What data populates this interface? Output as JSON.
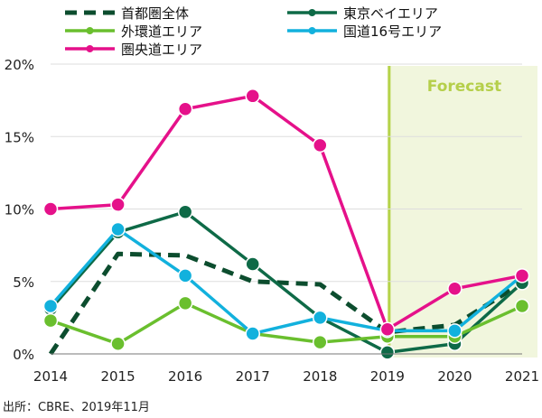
{
  "chart_data": {
    "type": "line",
    "title": "",
    "xlabel": "",
    "ylabel": "",
    "categories": [
      "2014",
      "2015",
      "2016",
      "2017",
      "2018",
      "2019",
      "2020",
      "2021"
    ],
    "ylim": [
      0,
      20
    ],
    "yticks": [
      0,
      5,
      10,
      15,
      20
    ],
    "ytick_labels": [
      "0%",
      "5%",
      "10%",
      "15%",
      "20%"
    ],
    "grid": true,
    "legend_position": "top",
    "forecast": {
      "label": "Forecast",
      "start": "2019",
      "end": "2021",
      "color": "#f1f6dd",
      "line_color": "#b5d34a"
    },
    "series": [
      {
        "name": "首都圏全体",
        "color": "#0c4d2e",
        "style": "dashed",
        "markers": false,
        "values": [
          0.0,
          6.9,
          6.8,
          5.0,
          4.8,
          1.5,
          2.0,
          4.9
        ]
      },
      {
        "name": "東京ベイエリア",
        "color": "#0e6a47",
        "style": "solid",
        "markers": true,
        "values": [
          3.1,
          8.4,
          9.8,
          6.2,
          2.5,
          0.1,
          0.7,
          4.9
        ]
      },
      {
        "name": "外環道エリア",
        "color": "#6abf2e",
        "style": "solid",
        "markers": true,
        "values": [
          2.3,
          0.7,
          3.5,
          1.4,
          0.8,
          1.2,
          1.2,
          3.3
        ]
      },
      {
        "name": "国道16号エリア",
        "color": "#12b1dd",
        "style": "solid",
        "markers": true,
        "values": [
          3.3,
          8.6,
          5.4,
          1.4,
          2.5,
          1.6,
          1.6,
          5.4
        ]
      },
      {
        "name": "圏央道エリア",
        "color": "#e5118a",
        "style": "solid",
        "markers": true,
        "values": [
          10.0,
          10.3,
          16.9,
          17.8,
          14.4,
          1.7,
          4.5,
          5.4
        ]
      }
    ]
  },
  "source_note": "出所：CBRE、2019年11月"
}
